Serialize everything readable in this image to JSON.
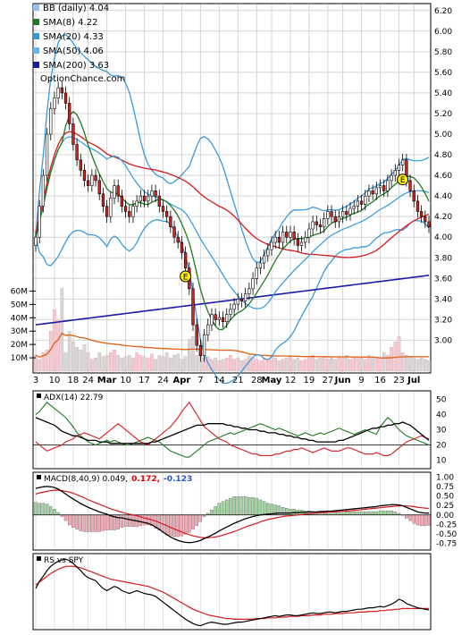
{
  "chart_data": [
    {
      "type": "candlestick",
      "panel": "price",
      "legend": [
        {
          "label": "BB (daily) 4.04",
          "color": "#8fc3ea"
        },
        {
          "label": "SMA(8) 4.22",
          "color": "#1f7a1f"
        },
        {
          "label": "SMA(20) 4.33",
          "color": "#3399dd"
        },
        {
          "label": "SMA(50) 4.06",
          "color": "#66b3ee"
        },
        {
          "label": "SMA(200) 3.63",
          "color": "#1a1aa6"
        }
      ],
      "watermark": "OptionChance.com",
      "yticks": [
        "6.20",
        "6.00",
        "5.80",
        "5.60",
        "5.40",
        "5.20",
        "5.00",
        "4.80",
        "4.60",
        "4.40",
        "4.20",
        "4.00",
        "3.80",
        "3.60",
        "3.40",
        "3.20",
        "3.00"
      ],
      "ylim": [
        2.7,
        6.25
      ],
      "x_labels": [
        "3",
        "10",
        "18",
        "24",
        "Mar",
        "10",
        "17",
        "24",
        "Apr",
        "7",
        "14",
        "21",
        "28",
        "May",
        "12",
        "19",
        "27",
        "Jun",
        "9",
        "16",
        "23",
        "Jul"
      ],
      "x_label_index": [
        0,
        5,
        10,
        14,
        19,
        24,
        29,
        34,
        39,
        44,
        49,
        54,
        59,
        63,
        68,
        73,
        78,
        82,
        87,
        92,
        97,
        101
      ],
      "earnings_markers": [
        {
          "label": "E",
          "index": 40,
          "price": 3.62
        },
        {
          "label": "E",
          "index": 98,
          "price": 4.56
        }
      ],
      "series": [
        {
          "name": "Close",
          "values": [
            4.0,
            4.3,
            4.6,
            5.0,
            5.25,
            5.35,
            5.45,
            5.4,
            5.3,
            5.1,
            4.9,
            4.75,
            4.65,
            4.55,
            4.5,
            4.6,
            4.55,
            4.42,
            4.3,
            4.2,
            4.38,
            4.5,
            4.4,
            4.3,
            4.25,
            4.2,
            4.3,
            4.35,
            4.4,
            4.35,
            4.4,
            4.45,
            4.4,
            4.3,
            4.25,
            4.2,
            4.1,
            4.0,
            3.95,
            3.85,
            3.7,
            3.5,
            3.15,
            2.95,
            2.85,
            3.05,
            3.15,
            3.25,
            3.2,
            3.22,
            3.18,
            3.25,
            3.3,
            3.35,
            3.4,
            3.38,
            3.45,
            3.5,
            3.6,
            3.7,
            3.75,
            3.82,
            3.88,
            3.95,
            4.0,
            3.95,
            4.05,
            4.0,
            4.05,
            3.98,
            3.92,
            3.95,
            4.0,
            4.08,
            4.15,
            4.12,
            4.1,
            4.18,
            4.25,
            4.2,
            4.15,
            4.2,
            4.25,
            4.22,
            4.28,
            4.3,
            4.35,
            4.32,
            4.4,
            4.45,
            4.42,
            4.48,
            4.5,
            4.45,
            4.55,
            4.6,
            4.65,
            4.7,
            4.75,
            4.55,
            4.45,
            4.35,
            4.25,
            4.2,
            4.15,
            4.1
          ]
        },
        {
          "name": "Volume (M)",
          "values": [
            12,
            9,
            14,
            16,
            30,
            46,
            38,
            62,
            14,
            30,
            22,
            18,
            16,
            20,
            14,
            9,
            10,
            14,
            11,
            12,
            14,
            16,
            12,
            10,
            11,
            12,
            10,
            14,
            12,
            11,
            10,
            13,
            9,
            12,
            11,
            14,
            10,
            12,
            13,
            9,
            11,
            24,
            26,
            12,
            14,
            10,
            11,
            9,
            10,
            8,
            9,
            10,
            12,
            9,
            10,
            8,
            9,
            11,
            10,
            9,
            8,
            10,
            9,
            11,
            10,
            8,
            9,
            10,
            11,
            9,
            10,
            8,
            9,
            10,
            12,
            9,
            10,
            11,
            9,
            10,
            9,
            11,
            10,
            12,
            9,
            10,
            11,
            10,
            9,
            12,
            11,
            10,
            9,
            14,
            12,
            18,
            22,
            26,
            14,
            12,
            11,
            10,
            9,
            10,
            9,
            8
          ]
        }
      ],
      "vticks": [
        "60M",
        "50M",
        "40M",
        "30M",
        "20M",
        "10M"
      ],
      "vlim": [
        0,
        65
      ]
    },
    {
      "type": "line",
      "panel": "adx",
      "legend": [
        {
          "label": "ADX(14) 22.79",
          "color": "#000000"
        }
      ],
      "yticks": [
        "50",
        "40",
        "30",
        "20",
        "10"
      ],
      "ylim": [
        5,
        55
      ],
      "series": [
        {
          "name": "ADX",
          "values": [
            38,
            37,
            36,
            35,
            34,
            33,
            31,
            29,
            28,
            27,
            26,
            26,
            25,
            24,
            23,
            23,
            23,
            22,
            22,
            22,
            21,
            21,
            21,
            21,
            21,
            21,
            21,
            21,
            21,
            21,
            21,
            22,
            22,
            23,
            24,
            25,
            26,
            27,
            28,
            29,
            30,
            31,
            32,
            33,
            33,
            33,
            34,
            34,
            34,
            34,
            34,
            33,
            33,
            32,
            32,
            31,
            31,
            30,
            30,
            30,
            29,
            29,
            28,
            28,
            28,
            27,
            27,
            26,
            26,
            25,
            25,
            24,
            24,
            23,
            23,
            22,
            22,
            22,
            22,
            22,
            22,
            23,
            23,
            24,
            25,
            26,
            27,
            28,
            29,
            30,
            31,
            31,
            32,
            32,
            33,
            33,
            34,
            34,
            35,
            34,
            33,
            31,
            29,
            27,
            25,
            23
          ]
        },
        {
          "name": "+DI",
          "values": [
            40,
            42,
            45,
            48,
            46,
            44,
            42,
            40,
            38,
            35,
            32,
            28,
            26,
            24,
            22,
            21,
            20,
            21,
            22,
            23,
            22,
            23,
            22,
            21,
            20,
            20,
            21,
            22,
            23,
            24,
            25,
            24,
            23,
            22,
            20,
            18,
            16,
            15,
            14,
            13,
            12,
            12,
            14,
            16,
            18,
            20,
            22,
            23,
            24,
            25,
            26,
            27,
            28,
            27,
            28,
            29,
            30,
            31,
            32,
            33,
            34,
            33,
            32,
            31,
            30,
            31,
            30,
            29,
            28,
            27,
            26,
            27,
            28,
            27,
            26,
            27,
            28,
            27,
            28,
            29,
            30,
            31,
            30,
            29,
            28,
            27,
            28,
            29,
            30,
            29,
            28,
            27,
            32,
            35,
            38,
            36,
            33,
            30,
            28,
            26,
            25,
            24,
            23,
            22,
            21,
            20
          ]
        },
        {
          "name": "-DI",
          "values": [
            22,
            20,
            18,
            16,
            17,
            18,
            19,
            20,
            22,
            23,
            24,
            26,
            27,
            28,
            27,
            26,
            25,
            24,
            26,
            28,
            30,
            32,
            34,
            32,
            30,
            28,
            26,
            24,
            22,
            21,
            20,
            22,
            24,
            26,
            28,
            30,
            32,
            35,
            38,
            42,
            45,
            48,
            44,
            40,
            36,
            32,
            30,
            28,
            26,
            24,
            23,
            22,
            20,
            19,
            18,
            17,
            16,
            15,
            14,
            14,
            13,
            13,
            13,
            13,
            14,
            14,
            15,
            16,
            16,
            17,
            17,
            18,
            17,
            16,
            15,
            16,
            17,
            18,
            17,
            16,
            16,
            16,
            17,
            18,
            18,
            17,
            16,
            15,
            14,
            14,
            14,
            15,
            14,
            13,
            13,
            14,
            16,
            18,
            20,
            22,
            23,
            24,
            25,
            26,
            25,
            24
          ]
        }
      ]
    },
    {
      "type": "line+bar",
      "panel": "macd",
      "legend_prefix": "MACD(8,40,9) 0.049,",
      "legend_signal": "0.172,",
      "legend_hist": "-0.123",
      "colors": {
        "signal": "#dd0000",
        "hist_label": "#2255cc"
      },
      "yticks": [
        "1.00",
        "0.75",
        "0.50",
        "0.25",
        "0.00",
        "-0.25",
        "-0.50",
        "-0.75"
      ],
      "ylim": [
        -0.9,
        1.1
      ],
      "series": [
        {
          "name": "MACD",
          "values": [
            0.7,
            0.72,
            0.74,
            0.75,
            0.74,
            0.72,
            0.68,
            0.62,
            0.55,
            0.48,
            0.42,
            0.36,
            0.3,
            0.25,
            0.2,
            0.16,
            0.12,
            0.08,
            0.05,
            0.02,
            -0.02,
            -0.05,
            -0.07,
            -0.08,
            -0.1,
            -0.12,
            -0.14,
            -0.16,
            -0.18,
            -0.2,
            -0.22,
            -0.26,
            -0.32,
            -0.38,
            -0.45,
            -0.52,
            -0.58,
            -0.63,
            -0.67,
            -0.7,
            -0.72,
            -0.73,
            -0.72,
            -0.7,
            -0.67,
            -0.62,
            -0.58,
            -0.53,
            -0.48,
            -0.42,
            -0.37,
            -0.32,
            -0.27,
            -0.22,
            -0.18,
            -0.14,
            -0.1,
            -0.07,
            -0.04,
            -0.02,
            0.0,
            0.01,
            0.02,
            0.03,
            0.04,
            0.05,
            0.05,
            0.05,
            0.05,
            0.06,
            0.06,
            0.07,
            0.07,
            0.08,
            0.08,
            0.08,
            0.09,
            0.09,
            0.1,
            0.1,
            0.11,
            0.12,
            0.13,
            0.14,
            0.15,
            0.16,
            0.17,
            0.18,
            0.19,
            0.2,
            0.21,
            0.22,
            0.24,
            0.25,
            0.26,
            0.27,
            0.27,
            0.26,
            0.24,
            0.2,
            0.16,
            0.12,
            0.08,
            0.06,
            0.05,
            0.049
          ]
        },
        {
          "name": "Signal",
          "values": [
            0.55,
            0.58,
            0.6,
            0.62,
            0.64,
            0.65,
            0.65,
            0.64,
            0.62,
            0.6,
            0.57,
            0.53,
            0.49,
            0.45,
            0.4,
            0.36,
            0.32,
            0.28,
            0.24,
            0.2,
            0.16,
            0.13,
            0.1,
            0.07,
            0.04,
            0.02,
            0.0,
            -0.02,
            -0.05,
            -0.08,
            -0.1,
            -0.13,
            -0.16,
            -0.2,
            -0.24,
            -0.28,
            -0.33,
            -0.37,
            -0.41,
            -0.45,
            -0.49,
            -0.52,
            -0.55,
            -0.57,
            -0.59,
            -0.6,
            -0.6,
            -0.59,
            -0.58,
            -0.56,
            -0.53,
            -0.5,
            -0.47,
            -0.44,
            -0.4,
            -0.36,
            -0.32,
            -0.28,
            -0.25,
            -0.22,
            -0.18,
            -0.15,
            -0.12,
            -0.1,
            -0.08,
            -0.06,
            -0.04,
            -0.03,
            -0.02,
            -0.01,
            0.0,
            0.01,
            0.02,
            0.03,
            0.04,
            0.05,
            0.06,
            0.06,
            0.07,
            0.08,
            0.08,
            0.09,
            0.1,
            0.1,
            0.11,
            0.12,
            0.13,
            0.14,
            0.15,
            0.16,
            0.17,
            0.18,
            0.19,
            0.2,
            0.21,
            0.22,
            0.23,
            0.24,
            0.24,
            0.24,
            0.23,
            0.22,
            0.2,
            0.19,
            0.18,
            0.172
          ]
        }
      ]
    },
    {
      "type": "line",
      "panel": "rs",
      "legend": [
        {
          "label": "RS vs SPY",
          "color": "#000000"
        }
      ],
      "series": [
        {
          "name": "RS",
          "values": [
            0.55,
            0.65,
            0.72,
            0.8,
            0.86,
            0.9,
            0.93,
            0.95,
            0.96,
            0.94,
            0.9,
            0.85,
            0.8,
            0.74,
            0.7,
            0.68,
            0.66,
            0.6,
            0.55,
            0.52,
            0.55,
            0.58,
            0.56,
            0.52,
            0.5,
            0.48,
            0.5,
            0.52,
            0.5,
            0.48,
            0.47,
            0.46,
            0.44,
            0.4,
            0.36,
            0.32,
            0.28,
            0.24,
            0.2,
            0.16,
            0.12,
            0.09,
            0.06,
            0.04,
            0.03,
            0.05,
            0.07,
            0.08,
            0.07,
            0.06,
            0.05,
            0.05,
            0.06,
            0.07,
            0.08,
            0.08,
            0.09,
            0.1,
            0.11,
            0.12,
            0.13,
            0.14,
            0.15,
            0.16,
            0.17,
            0.16,
            0.17,
            0.18,
            0.18,
            0.17,
            0.17,
            0.18,
            0.19,
            0.2,
            0.21,
            0.2,
            0.2,
            0.21,
            0.22,
            0.22,
            0.21,
            0.22,
            0.23,
            0.23,
            0.24,
            0.25,
            0.26,
            0.26,
            0.27,
            0.28,
            0.28,
            0.29,
            0.3,
            0.29,
            0.31,
            0.33,
            0.36,
            0.4,
            0.38,
            0.34,
            0.32,
            0.3,
            0.28,
            0.27,
            0.26,
            0.25
          ]
        },
        {
          "name": "RS avg",
          "values": [
            0.6,
            0.64,
            0.68,
            0.72,
            0.76,
            0.79,
            0.82,
            0.84,
            0.86,
            0.86,
            0.86,
            0.85,
            0.84,
            0.82,
            0.8,
            0.78,
            0.76,
            0.74,
            0.72,
            0.7,
            0.68,
            0.67,
            0.66,
            0.65,
            0.64,
            0.63,
            0.62,
            0.61,
            0.6,
            0.59,
            0.58,
            0.56,
            0.54,
            0.52,
            0.5,
            0.47,
            0.44,
            0.41,
            0.38,
            0.35,
            0.32,
            0.29,
            0.26,
            0.24,
            0.22,
            0.2,
            0.18,
            0.17,
            0.16,
            0.15,
            0.14,
            0.13,
            0.13,
            0.12,
            0.12,
            0.12,
            0.12,
            0.12,
            0.12,
            0.13,
            0.13,
            0.13,
            0.14,
            0.14,
            0.14,
            0.15,
            0.15,
            0.15,
            0.16,
            0.16,
            0.16,
            0.17,
            0.17,
            0.17,
            0.18,
            0.18,
            0.18,
            0.19,
            0.19,
            0.19,
            0.2,
            0.2,
            0.2,
            0.21,
            0.21,
            0.21,
            0.22,
            0.22,
            0.22,
            0.23,
            0.23,
            0.23,
            0.24,
            0.24,
            0.25,
            0.25,
            0.26,
            0.26,
            0.27,
            0.27,
            0.27,
            0.27,
            0.27,
            0.27,
            0.27,
            0.27
          ]
        }
      ]
    }
  ]
}
